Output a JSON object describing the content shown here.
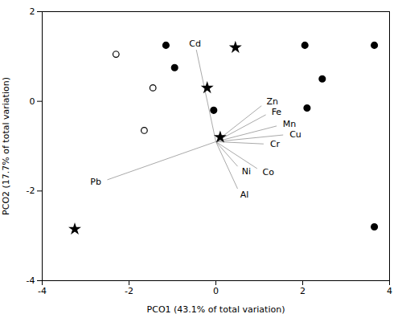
{
  "chart_data": {
    "type": "scatter",
    "xlabel": "PCO1 (43.1% of total variation)",
    "ylabel": "PCO2 (17.7% of total variation)",
    "xlim": [
      -4,
      4
    ],
    "ylim": [
      -4,
      2
    ],
    "xticks": [
      -4,
      -2,
      0,
      2,
      4
    ],
    "yticks": [
      -4,
      -2,
      0,
      2
    ],
    "grid": false,
    "series": [
      {
        "marker": "circle",
        "color": "#000000",
        "x": [
          -1.15,
          -0.95,
          -0.05,
          2.05,
          2.45,
          2.1,
          3.65,
          3.65
        ],
        "y": [
          1.25,
          0.75,
          -0.2,
          1.25,
          0.5,
          -0.15,
          1.25,
          -2.8
        ]
      },
      {
        "marker": "open_circle",
        "color": "#000000",
        "x": [
          -2.3,
          -1.45,
          -1.65
        ],
        "y": [
          1.05,
          0.3,
          -0.65
        ]
      },
      {
        "marker": "star",
        "color": "#000000",
        "x": [
          0.45,
          -0.2,
          0.1,
          -3.25
        ],
        "y": [
          1.2,
          0.3,
          -0.8,
          -2.85
        ]
      }
    ],
    "vectors": {
      "origin": [
        0.0,
        -0.9
      ],
      "color": "#aaaaaa",
      "endpoints": [
        {
          "label": "Cd",
          "x": -0.45,
          "y": 1.15
        },
        {
          "label": "Zn",
          "x": 1.05,
          "y": -0.1
        },
        {
          "label": "Fe",
          "x": 1.15,
          "y": -0.3
        },
        {
          "label": "Mn",
          "x": 1.4,
          "y": -0.55
        },
        {
          "label": "Cu",
          "x": 1.55,
          "y": -0.75
        },
        {
          "label": "Cr",
          "x": 1.1,
          "y": -0.95
        },
        {
          "label": "Ni",
          "x": 0.5,
          "y": -1.45
        },
        {
          "label": "Co",
          "x": 0.95,
          "y": -1.5
        },
        {
          "label": "Al",
          "x": 0.5,
          "y": -1.95
        },
        {
          "label": "Pb",
          "x": -2.5,
          "y": -1.75
        }
      ]
    }
  }
}
